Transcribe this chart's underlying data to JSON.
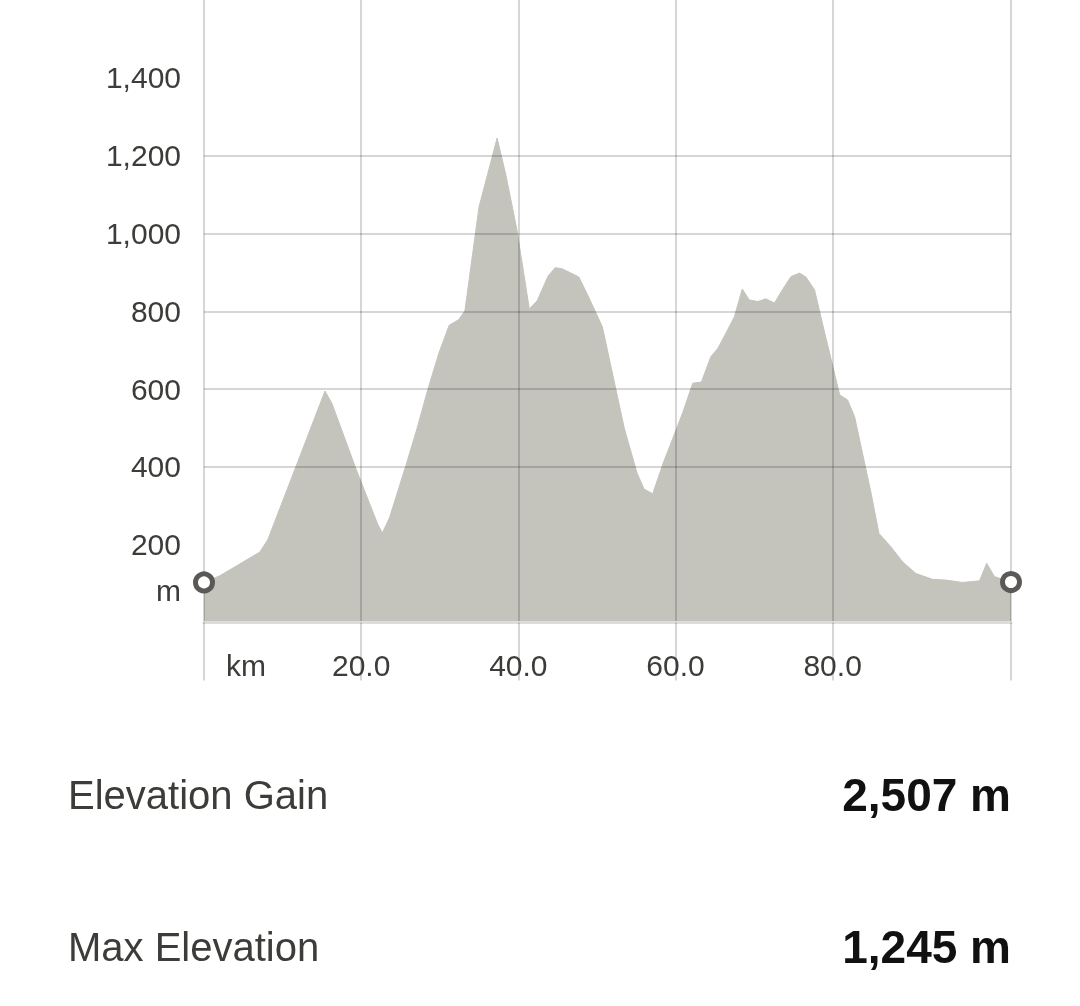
{
  "chart_data": {
    "type": "area",
    "xlabel": "km",
    "ylabel": "m",
    "series": [
      {
        "color": "#c4c4bd",
        "x": [
          0,
          2.0,
          4.1,
          7.1,
          8.1,
          15.4,
          16.3,
          19.3,
          22.1,
          22.7,
          23.6,
          25.7,
          27.1,
          28.5,
          29.9,
          31.2,
          32.4,
          33.2,
          35.0,
          37.3,
          38.4,
          39.8,
          41.4,
          42.4,
          43.8,
          44.7,
          45.6,
          47.7,
          48.8,
          50.7,
          51.8,
          53.5,
          55.1,
          56.0,
          57.1,
          58.5,
          60.9,
          62.2,
          63.3,
          64.5,
          65.4,
          66.3,
          67.5,
          68.5,
          69.4,
          70.5,
          71.5,
          72.6,
          73.6,
          74.7,
          75.8,
          76.6,
          77.7,
          78.7,
          80.9,
          81.9,
          82.8,
          83.8,
          84.9,
          85.9,
          87.4,
          88.9,
          90.6,
          92.7,
          94.4,
          96.5,
          98.7,
          99.6,
          100.6,
          102.7
        ],
        "values": [
          103,
          120,
          145,
          181,
          212,
          595,
          562,
          397,
          253,
          230,
          269,
          404,
          498,
          600,
          693,
          764,
          778,
          801,
          1068,
          1245,
          1152,
          1012,
          806,
          827,
          891,
          912,
          909,
          888,
          843,
          760,
          657,
          498,
          385,
          343,
          331,
          413,
          538,
          615,
          618,
          683,
          705,
          739,
          786,
          857,
          829,
          825,
          832,
          821,
          855,
          889,
          898,
          888,
          855,
          769,
          585,
          572,
          529,
          435,
          332,
          229,
          195,
          156,
          126,
          111,
          109,
          103,
          107,
          152,
          118,
          104
        ]
      },
      {
        "type": "scatter",
        "color": "#5a5955",
        "marker": "circle",
        "x": [
          0,
          102.7
        ],
        "values": [
          103,
          104
        ]
      }
    ],
    "xlim": [
      0,
      102.7
    ],
    "xticks": [
      {
        "value": 0,
        "label": null
      },
      {
        "value": 20,
        "label": "20.0"
      },
      {
        "value": 40,
        "label": "40.0"
      },
      {
        "value": 60,
        "label": "60.0"
      },
      {
        "value": 80,
        "label": "80.0"
      },
      {
        "value": 102.7,
        "label": null
      }
    ],
    "ylim": [
      0,
      1600
    ],
    "yticks": [
      200,
      400,
      600,
      800,
      {
        "value": 1000,
        "label": "1,000"
      },
      {
        "value": 1200,
        "label": "1,200"
      },
      {
        "value": 1400,
        "label": "1,400"
      }
    ],
    "grid": true,
    "annotations": [
      "Elevation Gain",
      "2,507 m",
      "Max Elevation",
      "1,245 m"
    ]
  }
}
